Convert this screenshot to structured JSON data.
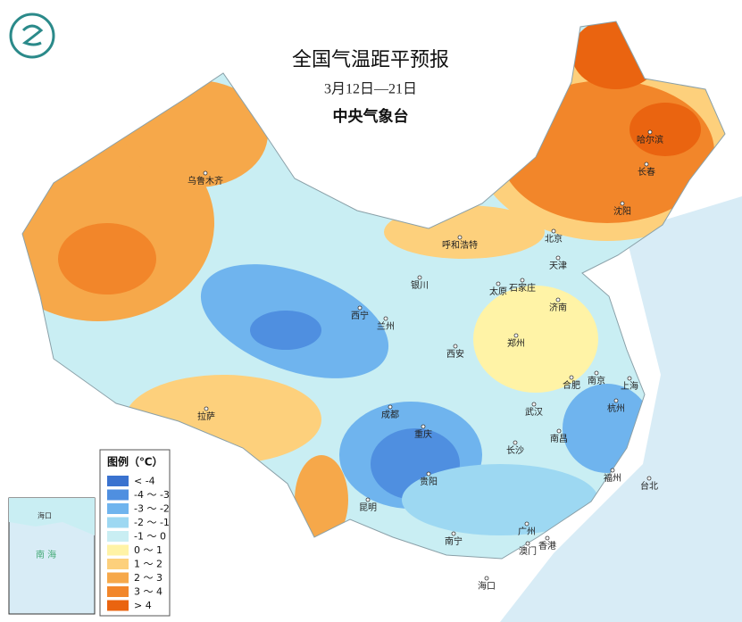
{
  "header": {
    "title": "全国气温距平预报",
    "date_range": "3月12日—21日",
    "agency": "中央气象台"
  },
  "legend": {
    "title": "图例（℃）",
    "items": [
      {
        "label": "< -4",
        "color": "#3a72cf"
      },
      {
        "label": "-4 ～ -3",
        "color": "#4f8fe0"
      },
      {
        "label": "-3 ～ -2",
        "color": "#6fb4ee"
      },
      {
        "label": "-2 ～ -1",
        "color": "#9dd8f2"
      },
      {
        "label": "-1 ～ 0",
        "color": "#c9eef3"
      },
      {
        "label": "0 ～ 1",
        "color": "#fff3a6"
      },
      {
        "label": "1 ～ 2",
        "color": "#fdd07c"
      },
      {
        "label": "2 ～ 3",
        "color": "#f6a84a"
      },
      {
        "label": "3 ～ 4",
        "color": "#f2862a"
      },
      {
        "label": "> 4",
        "color": "#ea6410"
      }
    ]
  },
  "cities": [
    "乌鲁木齐",
    "哈尔滨",
    "长春",
    "沈阳",
    "呼和浩特",
    "北京",
    "天津",
    "石家庄",
    "太原",
    "银川",
    "济南",
    "西宁",
    "兰州",
    "郑州",
    "西安",
    "合肥",
    "南京",
    "上海",
    "武汉",
    "杭州",
    "成都",
    "重庆",
    "拉萨",
    "南昌",
    "长沙",
    "贵阳",
    "福州",
    "台北",
    "昆明",
    "广州",
    "南宁",
    "香港",
    "澳门",
    "海口"
  ],
  "inset": {
    "labels": [
      "海口",
      "南 海"
    ]
  }
}
